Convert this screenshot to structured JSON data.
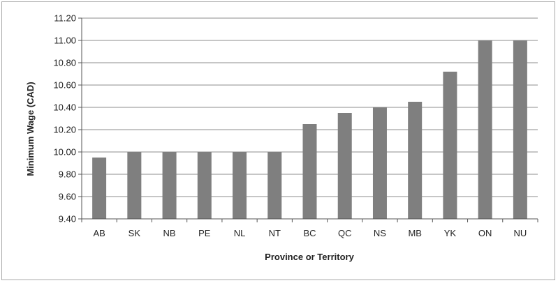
{
  "chart_data": {
    "type": "bar",
    "xlabel": "Province or Territory",
    "ylabel": "Minimum Wage (CAD)",
    "categories": [
      "AB",
      "SK",
      "NB",
      "PE",
      "NL",
      "NT",
      "BC",
      "QC",
      "NS",
      "MB",
      "YK",
      "ON",
      "NU"
    ],
    "values": [
      9.95,
      10.0,
      10.0,
      10.0,
      10.0,
      10.0,
      10.25,
      10.35,
      10.4,
      10.45,
      10.72,
      11.0,
      11.0
    ],
    "ylim": [
      9.4,
      11.2
    ],
    "ystep": 0.2,
    "ytick_labels": [
      "9.40",
      "9.60",
      "9.80",
      "10.00",
      "10.20",
      "10.40",
      "10.60",
      "10.80",
      "11.00",
      "11.20"
    ],
    "grid": true,
    "legend": "none",
    "bar_color": "#7f7f7f",
    "grid_color": "#8c8c8c"
  }
}
